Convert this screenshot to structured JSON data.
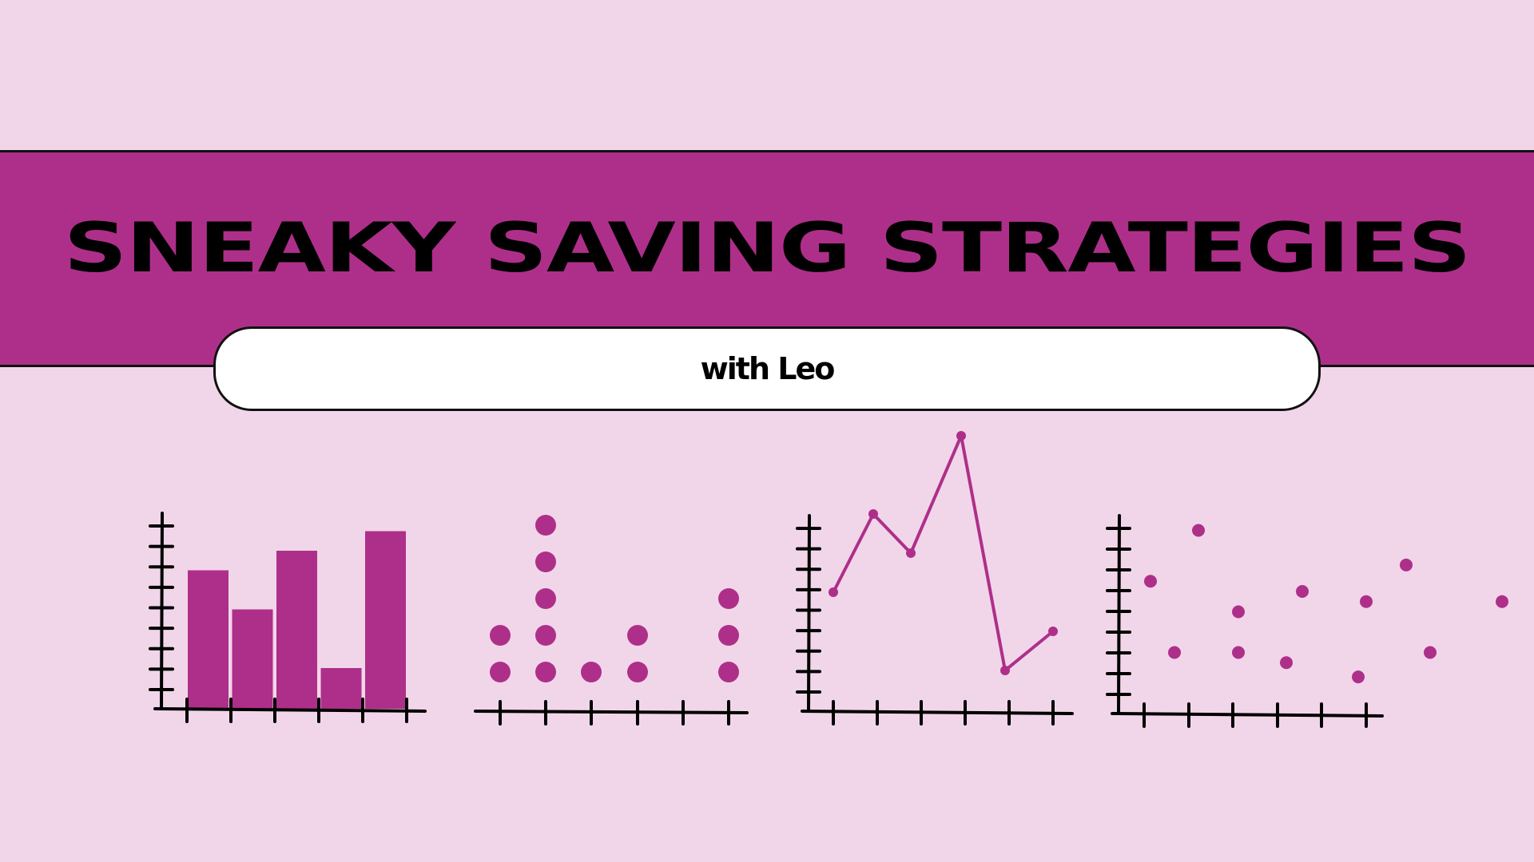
{
  "title": "SNEAKY SAVING STRATEGIES",
  "subtitle": "with Leo",
  "colors": {
    "background": "#f1d6e9",
    "accent": "#ae2f89",
    "ink": "#000000"
  },
  "decorative_charts": [
    {
      "type": "bar",
      "values": [
        7,
        5,
        8,
        2,
        9
      ]
    },
    {
      "type": "dot-plot",
      "values": [
        2,
        5,
        1,
        2,
        0,
        3
      ]
    },
    {
      "type": "line",
      "values": [
        4,
        6,
        5,
        8,
        2,
        3
      ]
    },
    {
      "type": "scatter",
      "points": [
        [
          0.4,
          6.5
        ],
        [
          0.7,
          3
        ],
        [
          1,
          9
        ],
        [
          1.5,
          5
        ],
        [
          1.5,
          3
        ],
        [
          2.1,
          2.5
        ],
        [
          2.3,
          6
        ],
        [
          3,
          1.8
        ],
        [
          3.1,
          5.5
        ],
        [
          3.6,
          7.3
        ],
        [
          3.9,
          3
        ],
        [
          4.8,
          5.5
        ]
      ]
    }
  ]
}
